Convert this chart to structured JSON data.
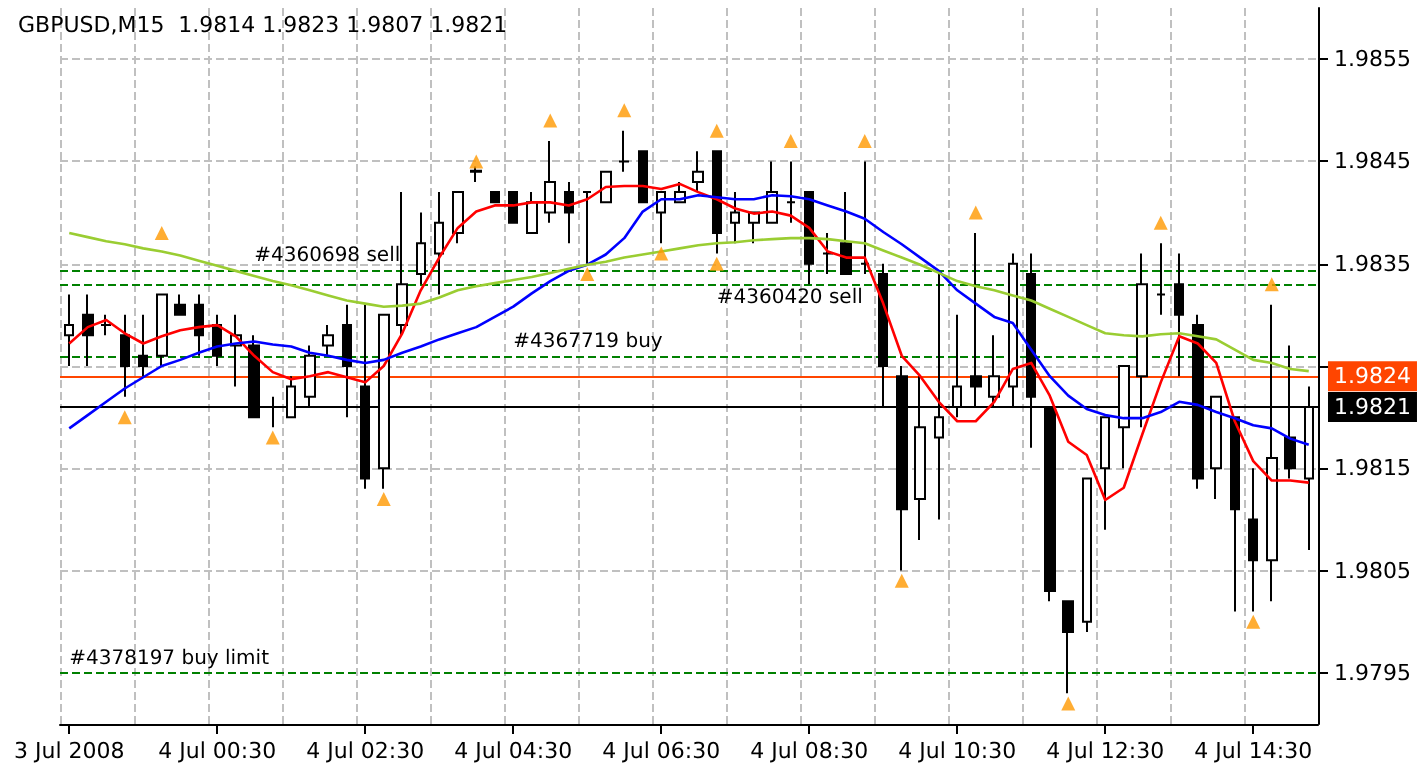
{
  "chart_data": {
    "type": "candlestick",
    "title": "GBPUSD,M15  1.9814 1.9823 1.9807 1.9821",
    "color": "#000000",
    "categories": [
      "3 Jul 2008",
      null,
      null,
      null,
      null,
      null,
      null,
      null,
      "4 Jul 00:30",
      null,
      null,
      null,
      null,
      null,
      null,
      null,
      "4 Jul 02:30",
      null,
      null,
      null,
      null,
      null,
      null,
      null,
      "4 Jul 04:30",
      null,
      null,
      null,
      null,
      null,
      null,
      null,
      "4 Jul 06:30",
      null,
      null,
      null,
      null,
      null,
      null,
      null,
      "4 Jul 08:30",
      null,
      null,
      null,
      null,
      null,
      null,
      null,
      "4 Jul 10:30",
      null,
      null,
      null,
      null,
      null,
      null,
      null,
      "4 Jul 12:30",
      null,
      null,
      null,
      null,
      null,
      null,
      null,
      "4 Jul 14:30",
      null,
      null,
      null
    ],
    "ohlc": [
      [
        1.9828,
        1.9832,
        1.9825,
        1.9829
      ],
      [
        1.983,
        1.9832,
        1.9825,
        1.9828
      ],
      [
        1.9829,
        1.983,
        1.9828,
        1.9829
      ],
      [
        1.9828,
        1.983,
        1.9822,
        1.9825
      ],
      [
        1.9826,
        1.983,
        1.9824,
        1.9825
      ],
      [
        1.9826,
        1.9832,
        1.9825,
        1.9832
      ],
      [
        1.9831,
        1.9832,
        1.983,
        1.983
      ],
      [
        1.9831,
        1.9832,
        1.9826,
        1.9828
      ],
      [
        1.9829,
        1.983,
        1.9825,
        1.9826
      ],
      [
        1.9827,
        1.983,
        1.9823,
        1.9828
      ],
      [
        1.9827,
        1.9828,
        1.982,
        1.982
      ],
      [
        1.9821,
        1.9822,
        1.9819,
        1.9821
      ],
      [
        1.982,
        1.9824,
        1.982,
        1.9823
      ],
      [
        1.9822,
        1.9827,
        1.9821,
        1.9826
      ],
      [
        1.9827,
        1.9829,
        1.9826,
        1.9828
      ],
      [
        1.9829,
        1.9831,
        1.982,
        1.9825
      ],
      [
        1.9823,
        1.9831,
        1.9813,
        1.9814
      ],
      [
        1.9815,
        1.983,
        1.9813,
        1.983
      ],
      [
        1.9829,
        1.9842,
        1.9828,
        1.9833
      ],
      [
        1.9834,
        1.984,
        1.9833,
        1.9837
      ],
      [
        1.9836,
        1.9842,
        1.9832,
        1.9839
      ],
      [
        1.9838,
        1.9842,
        1.9837,
        1.9842
      ],
      [
        1.98441,
        1.98445,
        1.9843,
        1.9844
      ],
      [
        1.9842,
        1.9842,
        1.9841,
        1.9841
      ],
      [
        1.9842,
        1.9842,
        1.9839,
        1.9839
      ],
      [
        1.9838,
        1.9842,
        1.9838,
        1.9841
      ],
      [
        1.984,
        1.9847,
        1.9839,
        1.9843
      ],
      [
        1.9842,
        1.9843,
        1.9837,
        1.984
      ],
      [
        1.9842,
        1.9842,
        1.9835,
        1.9842
      ],
      [
        1.9841,
        1.9844,
        1.9841,
        1.9844
      ],
      [
        1.9845,
        1.9848,
        1.9844,
        1.9845
      ],
      [
        1.9846,
        1.9846,
        1.9841,
        1.9841
      ],
      [
        1.984,
        1.9842,
        1.9837,
        1.9842
      ],
      [
        1.9841,
        1.9843,
        1.9841,
        1.9842
      ],
      [
        1.9843,
        1.9846,
        1.9842,
        1.9844
      ],
      [
        1.9846,
        1.9846,
        1.9836,
        1.9838
      ],
      [
        1.9839,
        1.9842,
        1.9837,
        1.984
      ],
      [
        1.9839,
        1.984,
        1.9837,
        1.984
      ],
      [
        1.9839,
        1.9845,
        1.9839,
        1.9842
      ],
      [
        1.9841,
        1.9845,
        1.9839,
        1.9841
      ],
      [
        1.9842,
        1.9842,
        1.9833,
        1.9835
      ],
      [
        1.9836,
        1.9838,
        1.9834,
        1.9836
      ],
      [
        1.9837,
        1.9842,
        1.9834,
        1.9834
      ],
      [
        1.9835,
        1.9845,
        1.9834,
        1.9835
      ],
      [
        1.9834,
        1.9835,
        1.9821,
        1.9825
      ],
      [
        1.9824,
        1.9825,
        1.9805,
        1.9811
      ],
      [
        1.9812,
        1.9824,
        1.9808,
        1.9819
      ],
      [
        1.9818,
        1.9834,
        1.981,
        1.982
      ],
      [
        1.9821,
        1.983,
        1.982,
        1.9823
      ],
      [
        1.9824,
        1.9838,
        1.9821,
        1.9823
      ],
      [
        1.9822,
        1.9828,
        1.9821,
        1.9824
      ],
      [
        1.9823,
        1.9836,
        1.9821,
        1.9835
      ],
      [
        1.9834,
        1.9836,
        1.9817,
        1.9822
      ],
      [
        1.9821,
        1.9821,
        1.9802,
        1.9803
      ],
      [
        1.9802,
        1.9802,
        1.9793,
        1.9799
      ],
      [
        1.98,
        1.9814,
        1.9799,
        1.9814
      ],
      [
        1.9815,
        1.982,
        1.9809,
        1.982
      ],
      [
        1.9819,
        1.9825,
        1.9815,
        1.9825
      ],
      [
        1.9824,
        1.9836,
        1.9819,
        1.9833
      ],
      [
        1.9832,
        1.9837,
        1.983,
        1.9832
      ],
      [
        1.9833,
        1.9836,
        1.9824,
        1.983
      ],
      [
        1.9829,
        1.983,
        1.9813,
        1.9814
      ],
      [
        1.9815,
        1.9822,
        1.9812,
        1.9822
      ],
      [
        1.982,
        1.982,
        1.9801,
        1.9811
      ],
      [
        1.981,
        1.9815,
        1.9801,
        1.9806
      ],
      [
        1.9806,
        1.9831,
        1.9802,
        1.9816
      ],
      [
        1.9818,
        1.9827,
        1.9814,
        1.9815
      ],
      [
        1.9814,
        1.9823,
        1.9807,
        1.9821
      ]
    ],
    "series": [
      {
        "type": "line",
        "color": "#ff0000",
        "values": [
          1.98272,
          1.98288,
          1.98295,
          1.98282,
          1.98272,
          1.98279,
          1.98285,
          1.98288,
          1.9829,
          1.98279,
          1.9826,
          1.98244,
          1.98237,
          1.9824,
          1.98244,
          1.98239,
          1.98234,
          1.9825,
          1.98282,
          1.98324,
          1.98356,
          1.98385,
          1.98401,
          1.98407,
          1.98407,
          1.9841,
          1.9841,
          1.98407,
          1.98413,
          1.98425,
          1.98426,
          1.98426,
          1.98423,
          1.98428,
          1.9842,
          1.98413,
          1.98404,
          1.98399,
          1.98401,
          1.98397,
          1.98385,
          1.98362,
          1.98356,
          1.98356,
          1.98311,
          1.9826,
          1.9824,
          1.98215,
          1.98196,
          1.98196,
          1.98215,
          1.98247,
          1.98253,
          1.98221,
          1.98176,
          1.98163,
          1.98119,
          1.98131,
          1.98183,
          1.98234,
          1.98279,
          1.98272,
          1.98253,
          1.98196,
          1.98157,
          1.98138,
          1.98138,
          1.98136
        ]
      },
      {
        "type": "line",
        "color": "#0000ff",
        "values": [
          1.98189,
          1.98202,
          1.98215,
          1.98228,
          1.98239,
          1.9825,
          1.98256,
          1.98263,
          1.98269,
          1.98272,
          1.98274,
          1.98271,
          1.98269,
          1.98263,
          1.9826,
          1.98256,
          1.98253,
          1.98256,
          1.98263,
          1.98269,
          1.98276,
          1.98282,
          1.98288,
          1.98298,
          1.98308,
          1.98321,
          1.98333,
          1.98343,
          1.98349,
          1.98359,
          1.98375,
          1.98401,
          1.98413,
          1.98413,
          1.98417,
          1.98415,
          1.98413,
          1.98413,
          1.98417,
          1.98416,
          1.98413,
          1.98407,
          1.98401,
          1.98394,
          1.98381,
          1.98369,
          1.98356,
          1.98343,
          1.98324,
          1.98311,
          1.98298,
          1.98292,
          1.98266,
          1.9824,
          1.98221,
          1.98208,
          1.98202,
          1.98199,
          1.98199,
          1.98205,
          1.98215,
          1.98212,
          1.98205,
          1.98199,
          1.98192,
          1.98189,
          1.98179,
          1.98173
        ]
      },
      {
        "type": "line",
        "color": "#9acd32",
        "values": [
          1.9838,
          1.98376,
          1.98372,
          1.98369,
          1.98365,
          1.98362,
          1.98358,
          1.98353,
          1.98348,
          1.98343,
          1.98338,
          1.98333,
          1.98329,
          1.98324,
          1.98319,
          1.98314,
          1.98311,
          1.98308,
          1.98309,
          1.98311,
          1.98317,
          1.98324,
          1.98328,
          1.98331,
          1.98334,
          1.98337,
          1.98341,
          1.98345,
          1.98349,
          1.98352,
          1.98356,
          1.98359,
          1.98362,
          1.98365,
          1.98368,
          1.9837,
          1.98371,
          1.98373,
          1.98374,
          1.98375,
          1.98375,
          1.98374,
          1.98372,
          1.9837,
          1.98363,
          1.98356,
          1.98349,
          1.98341,
          1.98333,
          1.98328,
          1.98324,
          1.98319,
          1.98314,
          1.98306,
          1.98298,
          1.9829,
          1.98282,
          1.9828,
          1.98279,
          1.98281,
          1.98282,
          1.98279,
          1.98276,
          1.98266,
          1.98256,
          1.98253,
          1.98247,
          1.98245
        ]
      },
      {
        "type": "scatter",
        "color": "#ff9900",
        "marker": "triangle",
        "values": [
          null,
          null,
          null,
          null,
          null,
          1.9838,
          null,
          null,
          null,
          null,
          null,
          null,
          null,
          null,
          null,
          null,
          null,
          null,
          null,
          null,
          null,
          null,
          1.9845,
          null,
          null,
          null,
          1.9849,
          null,
          null,
          null,
          1.985,
          null,
          null,
          null,
          null,
          1.9848,
          null,
          null,
          null,
          1.9847,
          null,
          null,
          null,
          1.9847,
          null,
          null,
          null,
          null,
          null,
          1.984,
          null,
          null,
          null,
          null,
          null,
          null,
          null,
          null,
          null,
          1.9839,
          null,
          null,
          null,
          null,
          null,
          1.9833,
          null,
          null
        ]
      },
      {
        "type": "scatter",
        "color": "#ff9900",
        "marker": "triangle",
        "values": [
          null,
          null,
          null,
          1.982,
          null,
          null,
          null,
          null,
          null,
          null,
          null,
          1.9818,
          null,
          null,
          null,
          null,
          null,
          1.9812,
          null,
          null,
          null,
          null,
          null,
          null,
          null,
          null,
          null,
          null,
          1.9834,
          null,
          null,
          null,
          1.9836,
          null,
          null,
          1.9835,
          null,
          null,
          null,
          null,
          null,
          null,
          null,
          null,
          null,
          1.9804,
          null,
          null,
          null,
          null,
          null,
          null,
          null,
          null,
          1.9792,
          null,
          null,
          null,
          null,
          null,
          null,
          null,
          null,
          null,
          1.98,
          null,
          null,
          null
        ]
      }
    ],
    "ref_lines": [
      {
        "axis": "y",
        "value": 1.98344,
        "label": "#4360698 sell",
        "color": "#008000",
        "line_style": "dashed"
      },
      {
        "axis": "y",
        "value": 1.9833,
        "label": "#4360420 sell",
        "color": "#008000",
        "line_style": "dashed"
      },
      {
        "axis": "y",
        "value": 1.9826,
        "label": "#4367719 buy",
        "color": "#008000",
        "line_style": "dashed"
      },
      {
        "axis": "y",
        "value": 1.9795,
        "label": "#4378197 buy limit",
        "color": "#008000",
        "line_style": "dashed"
      },
      {
        "axis": "y",
        "value": 1.9824,
        "label": "1.9824",
        "color": "#ff4500",
        "line_style": "solid"
      },
      {
        "axis": "y",
        "value": 1.9821,
        "label": "1.9821",
        "color": "#000000",
        "line_style": "solid"
      }
    ],
    "ylim": [
      1.979,
      1.986
    ],
    "yticks": [
      1.9795,
      1.9805,
      1.9815,
      {
        "value": 1.9825,
        "label": null
      },
      1.9835,
      1.9845,
      1.9855
    ],
    "grid": true
  }
}
